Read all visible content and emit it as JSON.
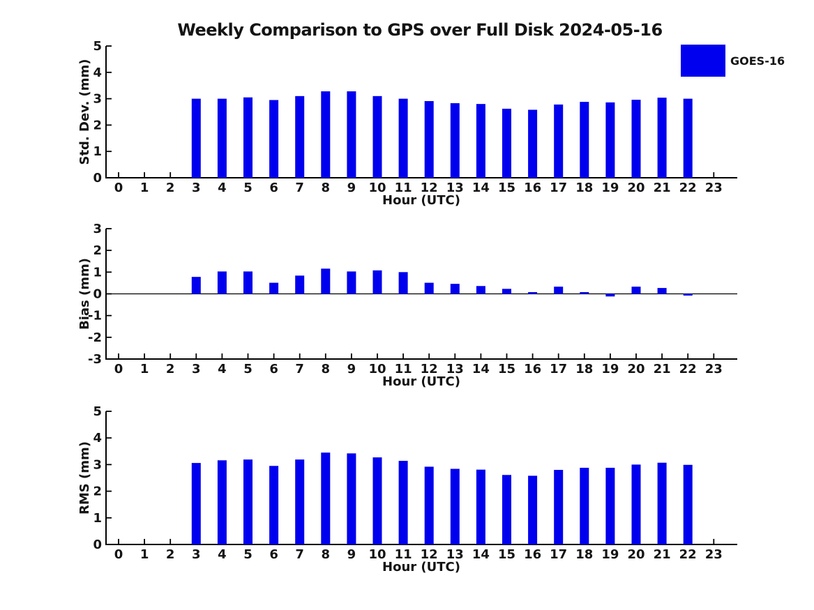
{
  "title": "Weekly Comparison to GPS over Full Disk 2024-05-16",
  "legend": {
    "label": "GOES-16",
    "swatch_color": "#0000EE"
  },
  "colors": {
    "bar": "#0000EE",
    "axis": "#000000",
    "text": "#141414",
    "background": "#ffffff"
  },
  "chart_data": [
    {
      "type": "bar",
      "id": "std_dev",
      "series_name": "GOES-16",
      "ylabel": "Std. Dev. (mm)",
      "xlabel": "Hour (UTC)",
      "ylim": [
        0,
        5
      ],
      "yticks": [
        0,
        1,
        2,
        3,
        4,
        5
      ],
      "xlim": [
        -0.5,
        24
      ],
      "grid": false,
      "zero_line": false,
      "x": [
        0,
        1,
        2,
        3,
        4,
        5,
        6,
        7,
        8,
        9,
        10,
        11,
        12,
        13,
        14,
        15,
        16,
        17,
        18,
        19,
        20,
        21,
        22,
        23
      ],
      "values": [
        null,
        null,
        null,
        3.0,
        3.0,
        3.05,
        2.95,
        3.1,
        3.28,
        3.28,
        3.1,
        3.0,
        2.91,
        2.83,
        2.8,
        2.62,
        2.58,
        2.78,
        2.88,
        2.86,
        2.96,
        3.04,
        3.0,
        null
      ]
    },
    {
      "type": "bar",
      "id": "bias",
      "series_name": "GOES-16",
      "ylabel": "Bias (mm)",
      "xlabel": "Hour (UTC)",
      "ylim": [
        -3,
        3
      ],
      "yticks": [
        -3,
        -2,
        -1,
        0,
        1,
        2,
        3
      ],
      "xlim": [
        -0.5,
        24
      ],
      "grid": false,
      "zero_line": true,
      "x": [
        0,
        1,
        2,
        3,
        4,
        5,
        6,
        7,
        8,
        9,
        10,
        11,
        12,
        13,
        14,
        15,
        16,
        17,
        18,
        19,
        20,
        21,
        22,
        23
      ],
      "values": [
        null,
        null,
        null,
        0.78,
        1.03,
        1.03,
        0.51,
        0.84,
        1.16,
        1.03,
        1.08,
        1.0,
        0.51,
        0.46,
        0.36,
        0.23,
        0.08,
        0.33,
        0.08,
        -0.12,
        0.33,
        0.27,
        -0.08,
        null
      ]
    },
    {
      "type": "bar",
      "id": "rms",
      "series_name": "GOES-16",
      "ylabel": "RMS (mm)",
      "xlabel": "Hour (UTC)",
      "ylim": [
        0,
        5
      ],
      "yticks": [
        0,
        1,
        2,
        3,
        4,
        5
      ],
      "xlim": [
        -0.5,
        24
      ],
      "grid": false,
      "zero_line": false,
      "x": [
        0,
        1,
        2,
        3,
        4,
        5,
        6,
        7,
        8,
        9,
        10,
        11,
        12,
        13,
        14,
        15,
        16,
        17,
        18,
        19,
        20,
        21,
        22,
        23
      ],
      "values": [
        null,
        null,
        null,
        3.06,
        3.16,
        3.19,
        2.95,
        3.19,
        3.45,
        3.42,
        3.27,
        3.14,
        2.92,
        2.84,
        2.81,
        2.61,
        2.58,
        2.8,
        2.88,
        2.88,
        3.0,
        3.07,
        2.99,
        null
      ]
    }
  ]
}
